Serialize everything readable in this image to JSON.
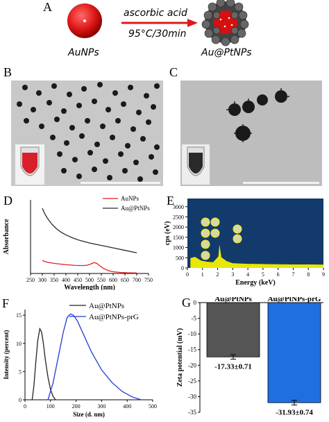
{
  "panels": {
    "a": {
      "letter": "A",
      "left_label": "AuNPs",
      "right_label": "Au@PtNPs",
      "reagent": "ascorbic acid",
      "condition": "95°C/30min"
    },
    "b": {
      "letter": "B"
    },
    "c": {
      "letter": "C"
    },
    "d": {
      "letter": "D"
    },
    "e": {
      "letter": "E"
    },
    "f": {
      "letter": "F"
    },
    "g": {
      "letter": "G"
    }
  },
  "chart_data": [
    {
      "id": "D",
      "type": "line",
      "xlabel": "Wavelength (nm)",
      "ylabel": "Absorbance",
      "xlim": [
        250,
        750
      ],
      "xticks": [
        "250",
        "300",
        "350",
        "400",
        "450",
        "500",
        "550",
        "600",
        "650",
        "700",
        "750"
      ],
      "ylim": [
        0,
        4.2
      ],
      "legend": "top-right",
      "series": [
        {
          "name": "AuNPs",
          "color": "#e02020",
          "x": [
            300,
            310,
            330,
            360,
            400,
            440,
            470,
            490,
            505,
            515,
            520,
            530,
            545,
            560,
            580,
            600,
            630,
            660,
            700
          ],
          "y": [
            0.75,
            0.68,
            0.62,
            0.56,
            0.5,
            0.46,
            0.45,
            0.47,
            0.54,
            0.6,
            0.62,
            0.58,
            0.42,
            0.28,
            0.16,
            0.1,
            0.06,
            0.04,
            0.03
          ]
        },
        {
          "name": "Au@PtNPs",
          "color": "#2a2a2a",
          "x": [
            300,
            310,
            320,
            340,
            360,
            380,
            400,
            430,
            460,
            500,
            550,
            600,
            650,
            700
          ],
          "y": [
            3.72,
            3.42,
            3.18,
            2.82,
            2.55,
            2.35,
            2.2,
            2.02,
            1.88,
            1.74,
            1.6,
            1.46,
            1.32,
            1.18
          ]
        }
      ]
    },
    {
      "id": "E",
      "type": "bar",
      "xlabel": "Energy (keV)",
      "ylabel": "cps (eV)",
      "xlim": [
        0,
        9
      ],
      "xticks": [
        "0",
        "1",
        "2",
        "3",
        "4",
        "5",
        "6",
        "7",
        "8",
        "9"
      ],
      "ylim": [
        0,
        3400
      ],
      "yticks": [
        "0",
        "500",
        "1000",
        "1500",
        "2000",
        "2500",
        "3000"
      ],
      "background": "#123a6b",
      "peak_color": "#e8e800",
      "x": [
        0.2,
        0.5,
        0.9,
        1.3,
        1.7,
        2.05,
        2.12,
        2.25,
        2.6,
        3.0,
        4.0,
        5.0,
        6.0,
        7.0,
        8.0,
        9.0
      ],
      "values": [
        480,
        540,
        360,
        300,
        280,
        560,
        1150,
        520,
        330,
        230,
        200,
        190,
        180,
        170,
        170,
        160
      ],
      "element_markers": 8
    },
    {
      "id": "F",
      "type": "line",
      "xlabel": "Size (d. nm)",
      "ylabel": "Intensity (percent)",
      "xlim": [
        0,
        500
      ],
      "xticks": [
        "0",
        "100",
        "200",
        "300",
        "400",
        "500"
      ],
      "ylim": [
        0,
        16
      ],
      "yticks": [
        "0",
        "5",
        "10",
        "15"
      ],
      "legend": "top-right",
      "series": [
        {
          "name": "Au@PtNPs",
          "color": "#222222",
          "x": [
            28,
            35,
            42,
            50,
            58,
            65,
            72,
            80,
            90,
            100,
            110,
            120
          ],
          "y": [
            0,
            2.5,
            6.5,
            10.5,
            12.6,
            12.0,
            10.0,
            7.0,
            4.0,
            1.8,
            0.6,
            0
          ]
        },
        {
          "name": "Au@PtNPs-prG",
          "color": "#1f3bd6",
          "x": [
            90,
            110,
            130,
            150,
            165,
            178,
            190,
            205,
            230,
            260,
            300,
            340,
            380,
            420,
            455
          ],
          "y": [
            0,
            3.0,
            7.5,
            12.0,
            14.6,
            15.2,
            15.0,
            14.0,
            11.5,
            8.5,
            5.3,
            3.1,
            1.5,
            0.5,
            0
          ]
        }
      ]
    },
    {
      "id": "G",
      "type": "bar",
      "ylabel": "Zeta potential (mV)",
      "ylim": [
        -35,
        0
      ],
      "yticks": [
        "0",
        "-5",
        "-10",
        "-15",
        "-20",
        "-25",
        "-30",
        "-35"
      ],
      "categories": [
        "Au@PtNPs",
        "Au@PtNPs-prG"
      ],
      "values": [
        -17.33,
        -31.93
      ],
      "errors": [
        0.71,
        0.74
      ],
      "colors": [
        "#555555",
        "#1e6fe0"
      ],
      "value_labels": [
        "-17.33±0.71",
        "-31.93±0.74"
      ]
    }
  ]
}
